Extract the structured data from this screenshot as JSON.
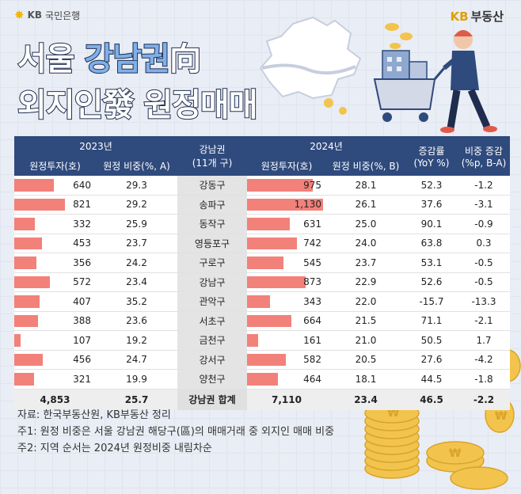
{
  "brand": {
    "left_logo": "KB",
    "left_name": "국민은행",
    "right_logo_kb": "KB",
    "right_logo_rest": "부동산"
  },
  "title": {
    "line1_white": "서울 ",
    "line1_blue": "강남권",
    "line1_white2": "向",
    "line2": "외지인發 원정매매"
  },
  "colors": {
    "header_bg": "#2f4a7c",
    "bar": "#f2817a",
    "region_bg": "#e4e4e4",
    "title_blue": "#7fb0ea"
  },
  "table": {
    "header": {
      "year2023": "2023년",
      "year2024": "2024년",
      "region_top": "강남권",
      "region_sub": "(11개 구)",
      "investment_2023": "원정투자(호)",
      "share_2023": "원정 비중(%, A)",
      "investment_2024": "원정투자(호)",
      "share_2024": "원정 비중(%, B)",
      "growth_top": "증감률",
      "growth_sub": "(YoY %)",
      "diff_top": "비중 증감",
      "diff_sub": "(%p, B-A)"
    },
    "rows": [
      {
        "region": "강동구",
        "inv2023": "640",
        "share2023": "29.3",
        "inv2024": "975",
        "share2024": "28.1",
        "growth": "52.3",
        "diff": "-1.2"
      },
      {
        "region": "송파구",
        "inv2023": "821",
        "share2023": "29.2",
        "inv2024": "1,130",
        "share2024": "26.1",
        "growth": "37.6",
        "diff": "-3.1"
      },
      {
        "region": "동작구",
        "inv2023": "332",
        "share2023": "25.9",
        "inv2024": "631",
        "share2024": "25.0",
        "growth": "90.1",
        "diff": "-0.9"
      },
      {
        "region": "영등포구",
        "inv2023": "453",
        "share2023": "23.7",
        "inv2024": "742",
        "share2024": "24.0",
        "growth": "63.8",
        "diff": "0.3"
      },
      {
        "region": "구로구",
        "inv2023": "356",
        "share2023": "24.2",
        "inv2024": "545",
        "share2024": "23.7",
        "growth": "53.1",
        "diff": "-0.5"
      },
      {
        "region": "강남구",
        "inv2023": "572",
        "share2023": "23.4",
        "inv2024": "873",
        "share2024": "22.9",
        "growth": "52.6",
        "diff": "-0.5"
      },
      {
        "region": "관악구",
        "inv2023": "407",
        "share2023": "35.2",
        "inv2024": "343",
        "share2024": "22.0",
        "growth": "-15.7",
        "diff": "-13.3"
      },
      {
        "region": "서초구",
        "inv2023": "388",
        "share2023": "23.6",
        "inv2024": "664",
        "share2024": "21.5",
        "growth": "71.1",
        "diff": "-2.1"
      },
      {
        "region": "금천구",
        "inv2023": "107",
        "share2023": "19.2",
        "inv2024": "161",
        "share2024": "21.0",
        "growth": "50.5",
        "diff": "1.7"
      },
      {
        "region": "강서구",
        "inv2023": "456",
        "share2023": "24.7",
        "inv2024": "582",
        "share2024": "20.5",
        "growth": "27.6",
        "diff": "-4.2"
      },
      {
        "region": "양천구",
        "inv2023": "321",
        "share2023": "19.9",
        "inv2024": "464",
        "share2024": "18.1",
        "growth": "44.5",
        "diff": "-1.8"
      }
    ],
    "total": {
      "region": "강남권 합계",
      "inv2023": "4,853",
      "share2023": "25.7",
      "inv2024": "7,110",
      "share2024": "23.4",
      "growth": "46.5",
      "diff": "-2.2"
    }
  },
  "chart_data": {
    "type": "table",
    "categories": [
      "강동구",
      "송파구",
      "동작구",
      "영등포구",
      "구로구",
      "강남구",
      "관악구",
      "서초구",
      "금천구",
      "강서구",
      "양천구"
    ],
    "series": [
      {
        "name": "2023 원정투자(호)",
        "values": [
          640,
          821,
          332,
          453,
          356,
          572,
          407,
          388,
          107,
          456,
          321
        ]
      },
      {
        "name": "2024 원정투자(호)",
        "values": [
          975,
          1130,
          631,
          742,
          545,
          873,
          343,
          664,
          161,
          582,
          464
        ]
      }
    ],
    "bar_scale_max": 1130
  },
  "notes": {
    "source": "자료: 한국부동산원, KB부동산 정리",
    "note1": "주1: 원정 비중은 서울 강남권 해당구(區)의 매매거래 중 외지인 매매 비중",
    "note2": "주2: 지역 순서는 2024년 원정비중 내림차순"
  },
  "icons": [
    "star-icon",
    "seoul-map-icon",
    "coin-icon",
    "shopper-illustration",
    "coins-stack-icon"
  ]
}
